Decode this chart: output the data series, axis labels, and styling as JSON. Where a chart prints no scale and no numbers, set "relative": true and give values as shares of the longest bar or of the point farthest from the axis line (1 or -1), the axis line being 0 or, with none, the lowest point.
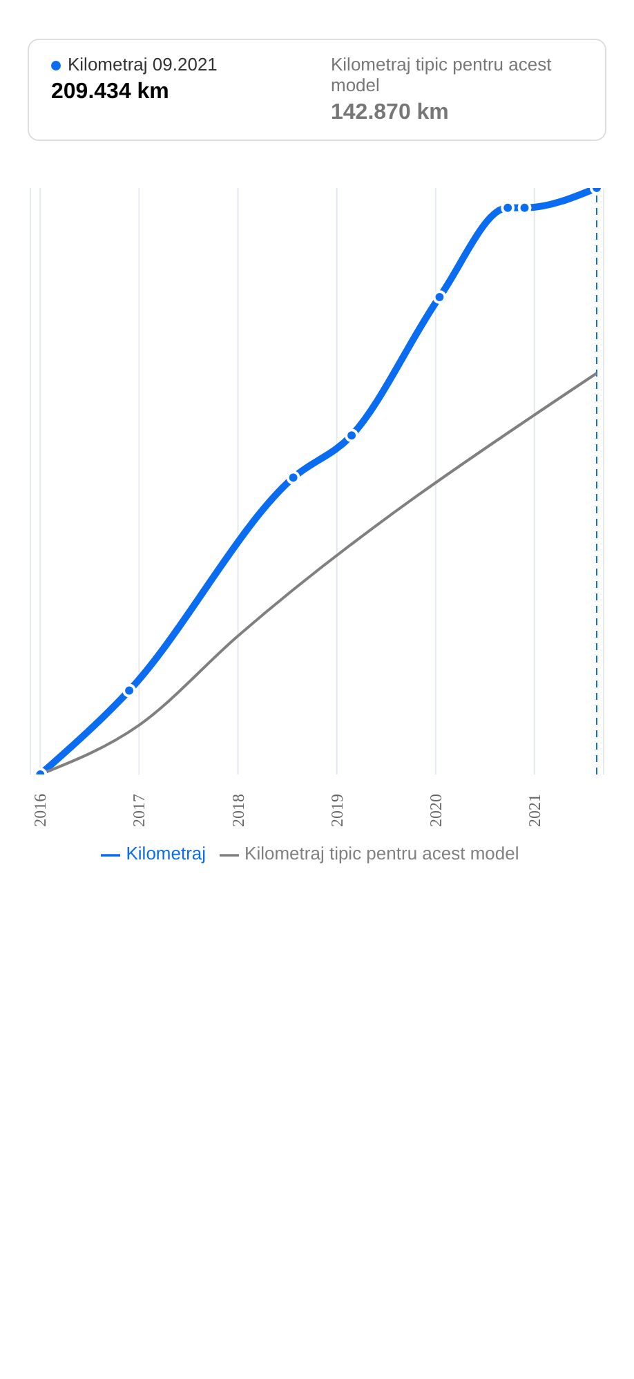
{
  "chart_data": {
    "type": "line",
    "relative": true,
    "annotations": [
      "Kilometraj 09.2021",
      "209.434 km",
      "Kilometraj tipic pentru acest model",
      "142.870 km"
    ],
    "xlim": [
      2015.9,
      2021.7
    ],
    "xticks": [
      2016,
      2017,
      2018,
      2019,
      2020,
      2021
    ],
    "grid": "x",
    "legend": "bottom",
    "marker": "circle",
    "line_style": "solid",
    "ref_lines": [
      {
        "axis": "x",
        "value": 2021.63,
        "color": "#0a6cf0",
        "line_style": "dashed"
      }
    ],
    "series": [
      {
        "name": "Kilometraj",
        "color": "#0a6cf0",
        "x": [
          2016.0,
          2016.9,
          2018.56,
          2019.15,
          2020.04,
          2020.73,
          2020.9,
          2021.63
        ],
        "values": [
          0,
          0.143,
          0.506,
          0.578,
          0.814,
          0.966,
          0.966,
          1
        ]
      },
      {
        "name": "Kilometraj tipic pentru acest model",
        "color": "#808080",
        "marker": "none",
        "x": [
          2016.0,
          2017.0,
          2018.0,
          2021.63
        ],
        "values": [
          0,
          0.084,
          0.236,
          0.684
        ]
      }
    ]
  }
}
